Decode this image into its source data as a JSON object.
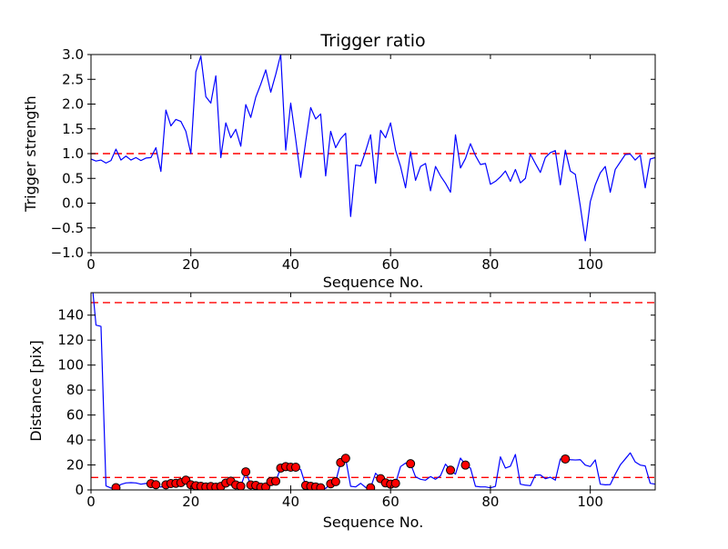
{
  "figure": {
    "background": "#ffffff",
    "line_color": "#0000ff",
    "threshold_color": "#ff0000",
    "marker_face_color": "#ff0000",
    "marker_edge_color": "#000000",
    "spine_color": "#000000"
  },
  "chart_data": [
    {
      "type": "line",
      "name": "trigger-ratio",
      "title": "Trigger ratio",
      "xlabel": "Sequence No.",
      "ylabel": "Trigger strength",
      "xlim": [
        0,
        113
      ],
      "ylim": [
        -1.0,
        3.0
      ],
      "grid": false,
      "xticks": [
        0,
        20,
        40,
        60,
        80,
        100
      ],
      "xticklabels": [
        "0",
        "20",
        "40",
        "60",
        "80",
        "100"
      ],
      "yticks": [
        -1.0,
        -0.5,
        0.0,
        0.5,
        1.0,
        1.5,
        2.0,
        2.5,
        3.0
      ],
      "yticklabels": [
        "−1.0",
        "−0.5",
        "0.0",
        "0.5",
        "1.0",
        "1.5",
        "2.0",
        "2.5",
        "3.0"
      ],
      "threshold_lines": [
        1.0
      ],
      "x_start": 0,
      "values": [
        0.89,
        0.85,
        0.87,
        0.81,
        0.86,
        1.09,
        0.87,
        0.95,
        0.87,
        0.92,
        0.86,
        0.91,
        0.92,
        1.12,
        0.64,
        1.88,
        1.56,
        1.69,
        1.65,
        1.45,
        1.0,
        2.65,
        2.97,
        2.15,
        2.02,
        2.57,
        0.92,
        1.62,
        1.32,
        1.49,
        1.15,
        1.99,
        1.73,
        2.14,
        2.4,
        2.69,
        2.24,
        2.6,
        3.0,
        1.07,
        2.02,
        1.29,
        0.52,
        1.24,
        1.93,
        1.7,
        1.8,
        0.55,
        1.45,
        1.12,
        1.3,
        1.41,
        -0.27,
        0.77,
        0.75,
        1.05,
        1.38,
        0.4,
        1.47,
        1.32,
        1.62,
        1.07,
        0.74,
        0.31,
        1.04,
        0.46,
        0.74,
        0.8,
        0.25,
        0.74,
        0.55,
        0.4,
        0.22,
        1.38,
        0.71,
        0.9,
        1.2,
        0.96,
        0.78,
        0.8,
        0.38,
        0.44,
        0.53,
        0.65,
        0.44,
        0.68,
        0.41,
        0.5,
        0.99,
        0.8,
        0.62,
        0.92,
        1.02,
        1.06,
        0.37,
        1.07,
        0.65,
        0.58,
        -0.06,
        -0.76,
        0.03,
        0.37,
        0.61,
        0.74,
        0.22,
        0.68,
        0.83,
        0.98,
        0.99,
        0.87,
        0.97,
        0.31,
        0.89,
        0.92
      ]
    },
    {
      "type": "line+scatter",
      "name": "distance",
      "title": "",
      "xlabel": "Sequence No.",
      "ylabel": "Distance [pix]",
      "xlim": [
        0,
        113
      ],
      "ylim": [
        0,
        158
      ],
      "grid": false,
      "xticks": [
        0,
        20,
        40,
        60,
        80,
        100
      ],
      "xticklabels": [
        "0",
        "20",
        "40",
        "60",
        "80",
        "100"
      ],
      "yticks": [
        0,
        20,
        40,
        60,
        80,
        100,
        120,
        140
      ],
      "yticklabels": [
        "0",
        "20",
        "40",
        "60",
        "80",
        "100",
        "120",
        "140"
      ],
      "threshold_lines": [
        150,
        10
      ],
      "x_start": 0,
      "values": [
        175,
        132,
        131,
        3.2,
        1.5,
        1.8,
        4.4,
        5.6,
        5.8,
        5.6,
        4.6,
        5.2,
        5.0,
        4.2,
        2.2,
        4.1,
        5.1,
        5.3,
        5.8,
        7.8,
        4.1,
        3.4,
        2.9,
        2.4,
        2.7,
        2.2,
        2.8,
        5.5,
        7.0,
        4.0,
        3.0,
        14.5,
        4.0,
        3.6,
        2.2,
        2.4,
        6.6,
        7.0,
        17.5,
        18.7,
        18.2,
        18.2,
        16.3,
        3.6,
        2.9,
        2.4,
        1.7,
        1.2,
        4.9,
        6.6,
        21.9,
        25.3,
        2.9,
        2.4,
        5.3,
        2.0,
        1.7,
        13.4,
        9.0,
        5.6,
        4.6,
        5.3,
        18.7,
        21.5,
        21.0,
        10.5,
        8.5,
        7.8,
        10.7,
        8.5,
        11.4,
        20.7,
        15.8,
        12.6,
        25.5,
        19.9,
        17.5,
        2.9,
        2.4,
        2.4,
        1.7,
        2.9,
        26.5,
        17.5,
        19.0,
        28.4,
        4.6,
        3.8,
        3.4,
        11.9,
        12.0,
        9.0,
        10.2,
        7.8,
        24.8,
        24.8,
        24.2,
        24.0,
        24.2,
        19.9,
        18.7,
        24.0,
        4.6,
        4.1,
        4.3,
        12.6,
        20.0,
        24.8,
        29.7,
        22.4,
        19.9,
        19.2,
        5.3,
        4.6
      ],
      "marker_indices": [
        5,
        12,
        13,
        15,
        16,
        17,
        18,
        19,
        20,
        21,
        22,
        23,
        24,
        25,
        26,
        27,
        28,
        29,
        30,
        31,
        32,
        33,
        34,
        35,
        36,
        37,
        38,
        39,
        40,
        41,
        43,
        44,
        45,
        46,
        48,
        49,
        50,
        51,
        56,
        58,
        59,
        60,
        61,
        64,
        72,
        75,
        95
      ]
    }
  ]
}
